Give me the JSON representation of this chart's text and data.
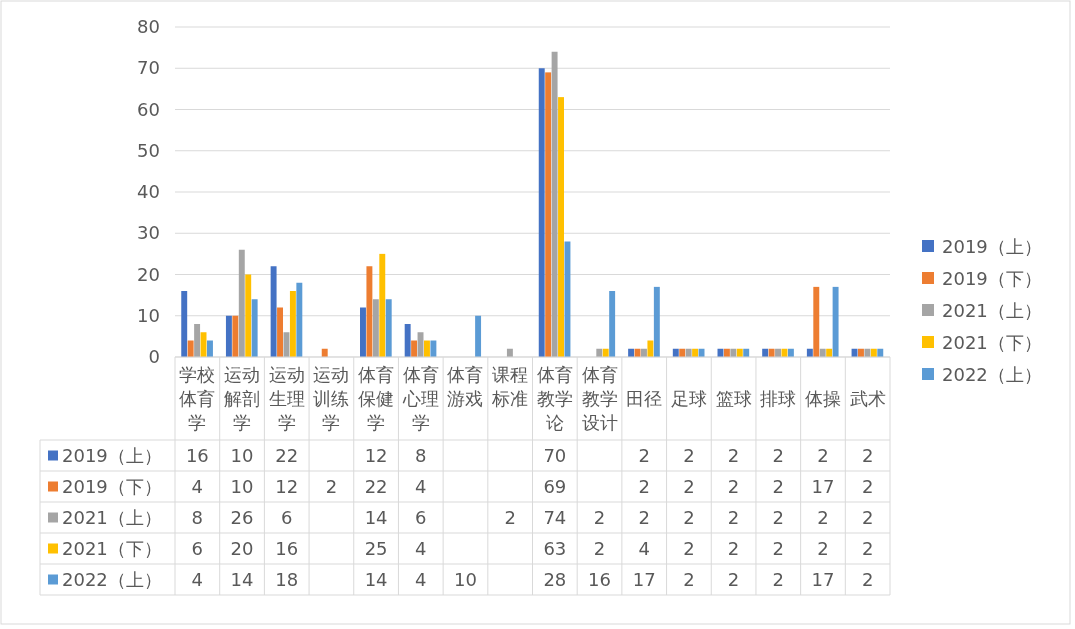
{
  "chart_data": {
    "type": "bar",
    "categories": [
      "学校体育学",
      "运动解剖学",
      "运动生理学",
      "运动训练学",
      "体育保健学",
      "体育心理学",
      "体育游戏",
      "课程标准",
      "体育教学论",
      "体育教学设计",
      "田径",
      "足球",
      "篮球",
      "排球",
      "体操",
      "武术"
    ],
    "series": [
      {
        "name": "2019（上）",
        "color": "#4472c4",
        "values": [
          16,
          10,
          22,
          null,
          12,
          8,
          null,
          null,
          70,
          null,
          2,
          2,
          2,
          2,
          2,
          2
        ]
      },
      {
        "name": "2019（下）",
        "color": "#ed7d31",
        "values": [
          4,
          10,
          12,
          2,
          22,
          4,
          null,
          null,
          69,
          null,
          2,
          2,
          2,
          2,
          17,
          2
        ]
      },
      {
        "name": "2021（上）",
        "color": "#a5a5a5",
        "values": [
          8,
          26,
          6,
          null,
          14,
          6,
          null,
          2,
          74,
          2,
          2,
          2,
          2,
          2,
          2,
          2
        ]
      },
      {
        "name": "2021（下）",
        "color": "#ffc000",
        "values": [
          6,
          20,
          16,
          null,
          25,
          4,
          null,
          null,
          63,
          2,
          4,
          2,
          2,
          2,
          2,
          2
        ]
      },
      {
        "name": "2022（上）",
        "color": "#5b9bd5",
        "values": [
          4,
          14,
          18,
          null,
          14,
          4,
          10,
          null,
          28,
          16,
          17,
          2,
          2,
          2,
          17,
          2
        ]
      }
    ],
    "ylim": [
      0,
      80
    ],
    "yticks": [
      0,
      10,
      20,
      30,
      40,
      50,
      60,
      70,
      80
    ],
    "grid": "y",
    "legend": "right",
    "data_labels": true
  }
}
